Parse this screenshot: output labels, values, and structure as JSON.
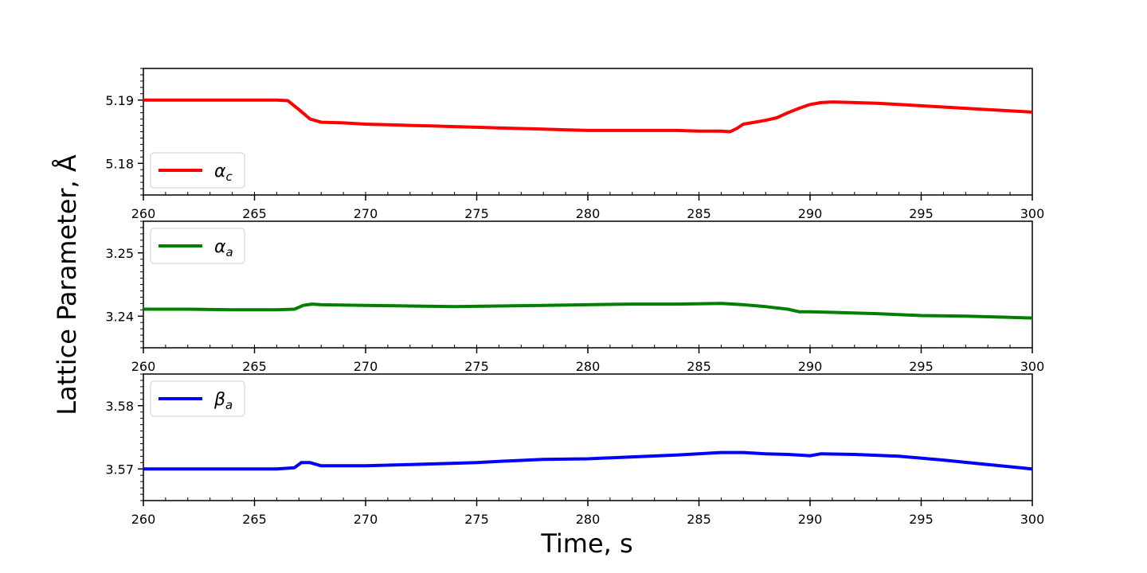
{
  "chart_data": [
    {
      "type": "line",
      "series": [
        {
          "name": "α_c",
          "legend_symbol": "α",
          "legend_subscript": "c",
          "color": "#ff0000",
          "x": [
            260,
            261,
            262,
            263,
            264,
            265,
            266,
            266.5,
            267,
            267.5,
            268,
            269,
            270,
            271,
            272,
            273,
            274,
            275,
            276,
            277,
            278,
            279,
            280,
            281,
            282,
            283,
            284,
            285,
            286,
            286.4,
            286.7,
            287,
            287.5,
            288,
            288.5,
            289,
            289.5,
            290,
            290.5,
            291,
            292,
            293,
            294,
            295,
            296,
            297,
            298,
            299,
            300
          ],
          "y": [
            5.19,
            5.19,
            5.19,
            5.19,
            5.19,
            5.19,
            5.19,
            5.1899,
            5.1885,
            5.187,
            5.1865,
            5.1864,
            5.1862,
            5.1861,
            5.186,
            5.1859,
            5.1858,
            5.1857,
            5.1856,
            5.1855,
            5.1854,
            5.1853,
            5.1852,
            5.1852,
            5.1852,
            5.1852,
            5.1852,
            5.1851,
            5.1851,
            5.185,
            5.1855,
            5.1862,
            5.1865,
            5.1868,
            5.1872,
            5.188,
            5.1887,
            5.1893,
            5.1896,
            5.1897,
            5.1896,
            5.1895,
            5.1893,
            5.1891,
            5.1889,
            5.1887,
            5.1885,
            5.1883,
            5.1881
          ]
        }
      ],
      "ylim": [
        5.175,
        5.195
      ],
      "xlim": [
        260,
        300
      ],
      "yticks": [
        "5.18",
        "5.19"
      ],
      "ytick_values": [
        5.18,
        5.19
      ],
      "xticks": [
        "260",
        "265",
        "270",
        "275",
        "280",
        "285",
        "290",
        "295",
        "300"
      ],
      "xtick_values": [
        260,
        265,
        270,
        275,
        280,
        285,
        290,
        295,
        300
      ],
      "legend_position": "lower-left"
    },
    {
      "type": "line",
      "series": [
        {
          "name": "α_a",
          "legend_symbol": "α",
          "legend_subscript": "a",
          "color": "#008000",
          "x": [
            260,
            262,
            264,
            266,
            266.8,
            267.2,
            267.6,
            268,
            270,
            272,
            274,
            276,
            278,
            280,
            282,
            284,
            286,
            287,
            288,
            289,
            289.5,
            290,
            291,
            293,
            295,
            297,
            299,
            300
          ],
          "y": [
            3.2411,
            3.2411,
            3.241,
            3.241,
            3.2411,
            3.2417,
            3.2419,
            3.2418,
            3.2417,
            3.2416,
            3.2415,
            3.2416,
            3.2417,
            3.2418,
            3.2419,
            3.2419,
            3.242,
            3.2418,
            3.2415,
            3.2411,
            3.2407,
            3.2407,
            3.2406,
            3.2404,
            3.2401,
            3.24,
            3.2398,
            3.2397
          ]
        }
      ],
      "ylim": [
        3.235,
        3.255
      ],
      "xlim": [
        260,
        300
      ],
      "yticks": [
        "3.24",
        "3.25"
      ],
      "ytick_values": [
        3.24,
        3.25
      ],
      "xticks": [
        "260",
        "265",
        "270",
        "275",
        "280",
        "285",
        "290",
        "295",
        "300"
      ],
      "xtick_values": [
        260,
        265,
        270,
        275,
        280,
        285,
        290,
        295,
        300
      ],
      "legend_position": "upper-left"
    },
    {
      "type": "line",
      "series": [
        {
          "name": "β_a",
          "legend_symbol": "β",
          "legend_subscript": "a",
          "color": "#0000ff",
          "x": [
            260,
            262,
            264,
            266,
            266.8,
            267.1,
            267.5,
            268,
            269,
            270,
            272,
            274,
            275,
            276,
            278,
            280,
            282,
            284,
            286,
            287,
            288,
            289,
            290,
            290.5,
            292,
            294,
            296,
            298,
            300
          ],
          "y": [
            3.57,
            3.57,
            3.57,
            3.57,
            3.5702,
            3.571,
            3.571,
            3.5705,
            3.5705,
            3.5705,
            3.5707,
            3.5709,
            3.571,
            3.5712,
            3.5715,
            3.5716,
            3.5719,
            3.5722,
            3.5726,
            3.5726,
            3.5724,
            3.5723,
            3.5721,
            3.5724,
            3.5723,
            3.572,
            3.5714,
            3.5707,
            3.57
          ]
        }
      ],
      "ylim": [
        3.565,
        3.585
      ],
      "xlim": [
        260,
        300
      ],
      "yticks": [
        "3.57",
        "3.58"
      ],
      "ytick_values": [
        3.57,
        3.58
      ],
      "xticks": [
        "260",
        "265",
        "270",
        "275",
        "280",
        "285",
        "290",
        "295",
        "300"
      ],
      "xtick_values": [
        260,
        265,
        270,
        275,
        280,
        285,
        290,
        295,
        300
      ],
      "legend_position": "upper-left"
    }
  ],
  "figure": {
    "ylabel": "Lattice Parameter, Å",
    "xlabel": "Time, s",
    "grid": false,
    "shared_ylabel": true
  }
}
